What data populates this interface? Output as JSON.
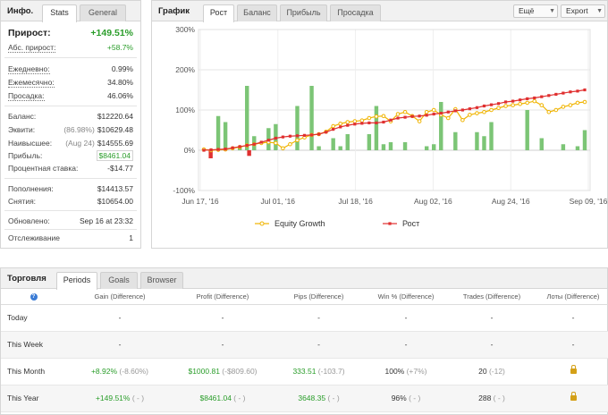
{
  "info": {
    "title": "Инфо.",
    "tabs": [
      "Stats",
      "General"
    ],
    "gain_label": "Прирост:",
    "gain_value": "+149.51%",
    "rows1": [
      {
        "label": "Абс. прирост:",
        "value": "+58.7%"
      },
      {
        "label": "Ежедневно:",
        "value": "0.99%"
      },
      {
        "label": "Ежемесячно:",
        "value": "34.80%"
      },
      {
        "label": "Просадка:",
        "value": "46.06%"
      }
    ],
    "rows2": [
      {
        "label": "Баланс:",
        "note": "",
        "value": "$12220.64"
      },
      {
        "label": "Эквити:",
        "note": "(86.98%)",
        "value": "$10629.48"
      },
      {
        "label": "Наивысшее:",
        "note": "(Aug 24)",
        "value": "$14555.69"
      },
      {
        "label": "Прибыль:",
        "note": "",
        "value": "$8461.04"
      },
      {
        "label": "Процентная ставка:",
        "note": "",
        "value": "-$14.77"
      }
    ],
    "rows3": [
      {
        "label": "Пополнения:",
        "value": "$14413.57"
      },
      {
        "label": "Снятия:",
        "value": "$10654.00"
      }
    ],
    "updated_label": "Обновлено:",
    "updated_value": "Sep 16 at 23:32",
    "tracking_label": "Отслеживание",
    "tracking_value": "1"
  },
  "chart_panel": {
    "title": "График",
    "tabs": [
      "Рост",
      "Баланс",
      "Прибыль",
      "Просадка"
    ],
    "buttons": [
      "Ещё",
      "Export"
    ]
  },
  "chart_data": {
    "type": "line",
    "yticks": [
      "300%",
      "200%",
      "100%",
      "0%",
      "-100%"
    ],
    "ylim": [
      -100,
      300
    ],
    "xticks": [
      "Jun 17, '16",
      "Jul 01, '16",
      "Jul 18, '16",
      "Aug 02, '16",
      "Aug 24, '16",
      "Sep 09, '16"
    ],
    "legend": [
      "Equity Growth",
      "Рост"
    ],
    "colors": {
      "equity": "#f0b400",
      "growth": "#e03030",
      "bars_pos": "#7cc576",
      "bars_neg": "#e03030"
    },
    "growth": [
      0,
      1,
      2,
      3,
      6,
      9,
      12,
      15,
      20,
      25,
      30,
      33,
      35,
      36,
      37,
      38,
      40,
      45,
      52,
      58,
      62,
      65,
      67,
      68,
      68,
      70,
      75,
      80,
      82,
      84,
      85,
      87,
      90,
      92,
      95,
      98,
      100,
      103,
      106,
      110,
      113,
      116,
      120,
      122,
      125,
      128,
      130,
      133,
      136,
      139,
      142,
      145,
      147,
      150
    ],
    "equity": [
      2,
      0,
      1,
      2,
      5,
      8,
      12,
      15,
      18,
      20,
      18,
      5,
      15,
      25,
      32,
      38,
      40,
      46,
      60,
      66,
      70,
      72,
      74,
      80,
      84,
      85,
      72,
      90,
      95,
      85,
      72,
      95,
      100,
      88,
      80,
      102,
      75,
      88,
      92,
      95,
      100,
      105,
      110,
      112,
      115,
      118,
      122,
      112,
      95,
      100,
      108,
      112,
      118,
      120
    ],
    "bars": [
      0,
      0,
      85,
      70,
      0,
      10,
      160,
      35,
      0,
      55,
      65,
      0,
      0,
      110,
      0,
      160,
      10,
      0,
      30,
      10,
      40,
      0,
      0,
      40,
      110,
      15,
      20,
      0,
      20,
      0,
      0,
      10,
      15,
      120,
      0,
      45,
      0,
      0,
      45,
      35,
      70,
      0,
      0,
      0,
      0,
      100,
      0,
      30,
      0,
      0,
      15,
      0,
      10,
      50
    ]
  },
  "trade": {
    "title": "Торговля",
    "tabs": [
      "Periods",
      "Goals",
      "Browser"
    ],
    "headers": [
      "?",
      "Gain (Difference)",
      "Profit (Difference)",
      "Pips (Difference)",
      "Win % (Difference)",
      "Trades (Difference)",
      "Лоты (Difference)"
    ],
    "rows": [
      {
        "label": "Today",
        "gain": "-",
        "gain_d": "",
        "profit": "-",
        "profit_d": "",
        "pips": "-",
        "pips_d": "",
        "win": "-",
        "win_d": "",
        "trades": "-",
        "trades_d": "",
        "lots": "-"
      },
      {
        "label": "This Week",
        "gain": "-",
        "gain_d": "",
        "profit": "-",
        "profit_d": "",
        "pips": "-",
        "pips_d": "",
        "win": "-",
        "win_d": "",
        "trades": "-",
        "trades_d": "",
        "lots": "-"
      },
      {
        "label": "This Month",
        "gain": "+8.92%",
        "gain_d": "(-8.60%)",
        "profit": "$1000.81",
        "profit_d": "(-$809.60)",
        "pips": "333.51",
        "pips_d": "(-103.7)",
        "win": "100%",
        "win_d": "(+7%)",
        "trades": "20",
        "trades_d": "(-12)",
        "lots": "lock"
      },
      {
        "label": "This Year",
        "gain": "+149.51%",
        "gain_d": "( - )",
        "profit": "$8461.04",
        "profit_d": "( - )",
        "pips": "3648.35",
        "pips_d": "( - )",
        "win": "96%",
        "win_d": "( - )",
        "trades": "288",
        "trades_d": "( - )",
        "lots": "lock"
      }
    ]
  }
}
